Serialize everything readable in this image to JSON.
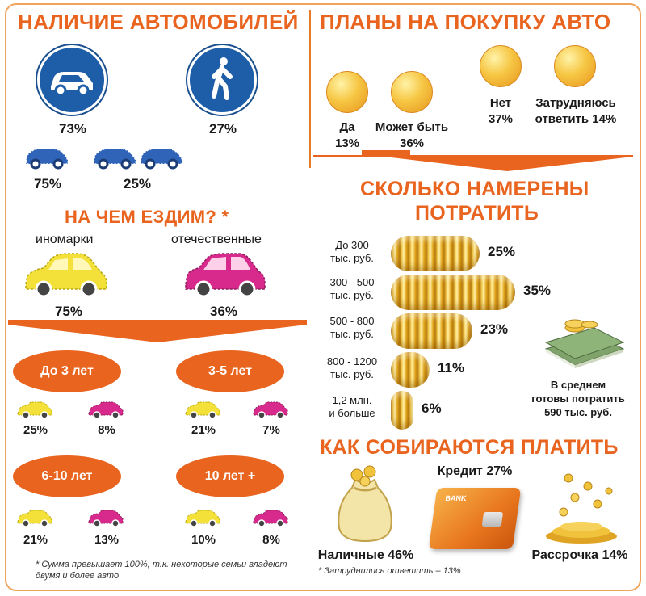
{
  "left": {
    "title": "НАЛИЧИЕ АВТОМОБИЛЕЙ",
    "car_sign_pct": "73%",
    "pedestrian_sign_pct": "27%",
    "one_car_pct": "75%",
    "two_cars_pct": "25%",
    "drive_title": "НА ЧЕМ ЕЗДИМ? *",
    "foreign_label": "иномарки",
    "domestic_label": "отечественные",
    "foreign_pct": "75%",
    "domestic_pct": "36%",
    "ages": [
      {
        "label": "До 3 лет",
        "foreign": "25%",
        "domestic": "8%"
      },
      {
        "label": "3-5 лет",
        "foreign": "21%",
        "domestic": "7%"
      },
      {
        "label": "6-10 лет",
        "foreign": "21%",
        "domestic": "13%"
      },
      {
        "label": "10 лет +",
        "foreign": "10%",
        "domestic": "8%"
      }
    ],
    "footnote": "* Сумма превышает 100%, т.к. некоторые семьи владеют двумя и более авто"
  },
  "right": {
    "title": "ПЛАНЫ НА ПОКУПКУ АВТО",
    "plans": [
      {
        "label": "Да",
        "pct": "13%"
      },
      {
        "label": "Может быть",
        "pct": "36%"
      },
      {
        "label": "Нет",
        "pct": "37%"
      },
      {
        "label": "Затрудняюсь",
        "pct": "ответить 14%"
      }
    ],
    "spend_title_1": "СКОЛЬКО НАМЕРЕНЫ",
    "spend_title_2": "ПОТРАТИТЬ",
    "spend": [
      {
        "l1": "До 300",
        "l2": "тыс. руб.",
        "pct": "25%",
        "value": 25
      },
      {
        "l1": "300 - 500",
        "l2": "тыс. руб.",
        "pct": "35%",
        "value": 35
      },
      {
        "l1": "500 - 800",
        "l2": "тыс. руб.",
        "pct": "23%",
        "value": 23
      },
      {
        "l1": "800 - 1200",
        "l2": "тыс. руб.",
        "pct": "11%",
        "value": 11
      },
      {
        "l1": "1,2 млн.",
        "l2": "и больше",
        "pct": "6%",
        "value": 6
      }
    ],
    "average_1": "В среднем",
    "average_2": "готовы потратить",
    "average_3": "590 тыс. руб.",
    "pay_title": "КАК СОБИРАЮТСЯ ПЛАТИТЬ",
    "credit": "Кредит 27%",
    "cash": "Наличные 46%",
    "installment": "Рассрочка 14%",
    "card_text": "BANK",
    "footnote": "* Затруднились ответить – 13%"
  },
  "colors": {
    "accent": "#e8641f",
    "sign_blue": "#1e5ea8",
    "car_blue": "#2f64b8",
    "car_yellow": "#f3e13a",
    "car_pink": "#d8298c"
  }
}
